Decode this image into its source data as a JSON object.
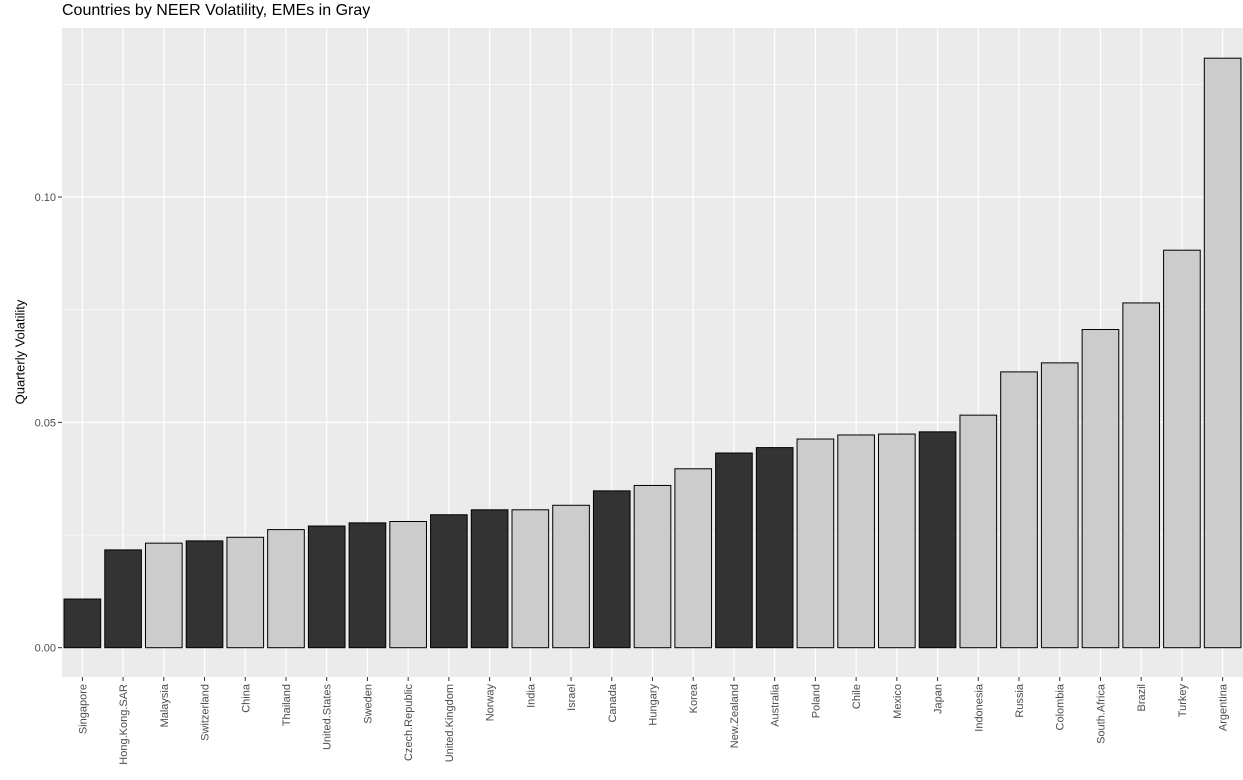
{
  "chart_data": {
    "type": "bar",
    "title": "Countries by NEER Volatility, EMEs in Gray",
    "xlabel": "",
    "ylabel": "Quarterly Volatility",
    "ylim": [
      -0.0065,
      0.1375
    ],
    "yticks": [
      0.0,
      0.05,
      0.1
    ],
    "ytick_labels": [
      "0.00",
      "0.05",
      "0.10"
    ],
    "grid": true,
    "legend": "none",
    "colors": {
      "eme": "#cccccc",
      "advanced": "#333333",
      "panel": "#ebebeb",
      "outline": "#000000"
    },
    "categories": [
      "Singapore",
      "Hong.Kong.SAR",
      "Malaysia",
      "Switzerland",
      "China",
      "Thailand",
      "United.States",
      "Sweden",
      "Czech.Republic",
      "United.Kingdom",
      "Norway",
      "India",
      "Israel",
      "Canada",
      "Hungary",
      "Korea",
      "New.Zealand",
      "Australia",
      "Poland",
      "Chile",
      "Mexico",
      "Japan",
      "Indonesia",
      "Russia",
      "Colombia",
      "South.Africa",
      "Brazil",
      "Turkey",
      "Argentina"
    ],
    "values": [
      0.0108,
      0.0217,
      0.0232,
      0.0237,
      0.0245,
      0.0262,
      0.027,
      0.0277,
      0.028,
      0.0295,
      0.0306,
      0.0306,
      0.0316,
      0.0348,
      0.036,
      0.0397,
      0.0432,
      0.0444,
      0.0463,
      0.0472,
      0.0474,
      0.0479,
      0.0516,
      0.0612,
      0.0632,
      0.0706,
      0.0765,
      0.0882,
      0.1308
    ],
    "emerging": [
      false,
      false,
      true,
      false,
      true,
      true,
      false,
      false,
      true,
      false,
      false,
      true,
      true,
      false,
      true,
      true,
      false,
      false,
      true,
      true,
      true,
      false,
      true,
      true,
      true,
      true,
      true,
      true,
      true
    ]
  }
}
